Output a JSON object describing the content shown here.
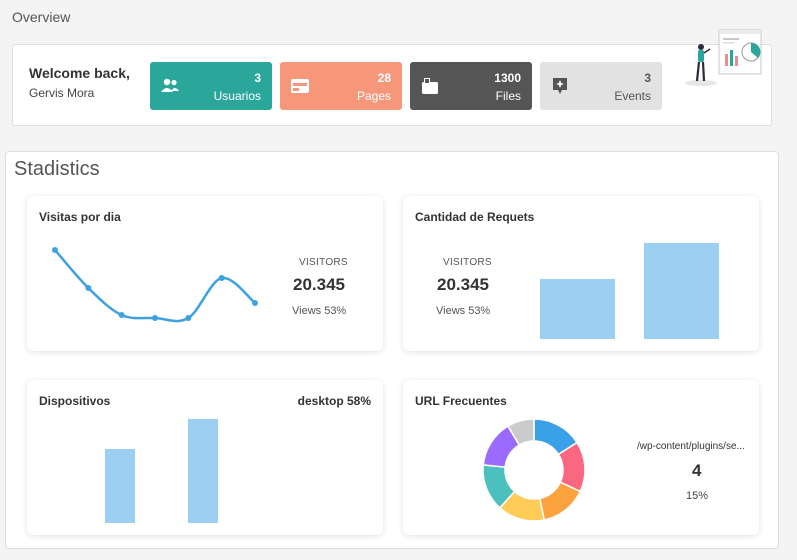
{
  "page": {
    "title": "Overview"
  },
  "welcome": {
    "title": "Welcome back,",
    "name": "Gervis Mora"
  },
  "stats": [
    {
      "value": "3",
      "label": "Usuarios",
      "icon": "users-icon",
      "color": "#2aa69b"
    },
    {
      "value": "28",
      "label": "Pages",
      "icon": "browser-icon",
      "color": "#f7977a"
    },
    {
      "value": "1300",
      "label": "Files",
      "icon": "folder-icon",
      "color": "#555555"
    },
    {
      "value": "3",
      "label": "Events",
      "icon": "sparkle-icon",
      "color": "#e2e2e2"
    }
  ],
  "section": {
    "title": "Stadistics"
  },
  "visitas": {
    "title": "Visitas por dia",
    "label": "VISITORS",
    "value": "20.345",
    "sub": "Views 53%",
    "chart_data": {
      "type": "line",
      "values": [
        88,
        50,
        23,
        20,
        20,
        60,
        35
      ],
      "color": "#3fa2e0"
    }
  },
  "requets": {
    "title": "Cantidad de Requets",
    "label": "VISITORS",
    "value": "20.345",
    "sub": "Views 53%",
    "chart_data": {
      "type": "bar",
      "values": [
        60,
        96
      ],
      "color": "#9ccff2"
    }
  },
  "dispositivos": {
    "title": "Dispositivos",
    "right_label": "desktop 58%",
    "chart_data": {
      "type": "bar",
      "values": [
        74,
        104
      ],
      "color": "#9ccff2"
    }
  },
  "url": {
    "title": "URL Frecuentes",
    "path": "/wp-content/plugins/se...",
    "value": "4",
    "percent": "15%",
    "chart_data": {
      "type": "pie",
      "values": [
        15,
        15,
        14,
        14,
        14,
        14,
        8
      ],
      "colors": [
        "#3aa0e8",
        "#fb6680",
        "#fca33f",
        "#ffcc58",
        "#4bc0bf",
        "#9b6bff",
        "#cbcbcb"
      ]
    }
  }
}
